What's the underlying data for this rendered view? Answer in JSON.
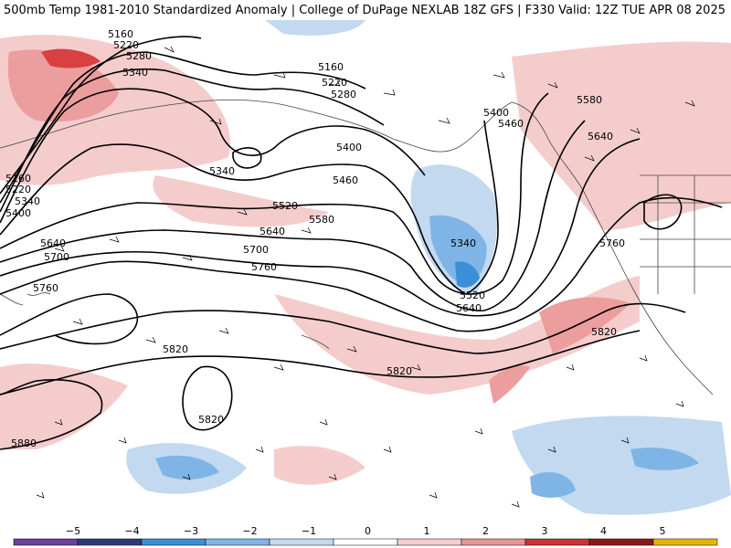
{
  "header": {
    "title": "500mb Temp 1981-2010 Standardized Anomaly | College of DuPage NEXLAB",
    "model_info": "18Z GFS | F330 Valid: 12Z TUE APR 08 2025"
  },
  "contour_labels": {
    "c5160": "5160",
    "c5220": "5220",
    "c5280": "5280",
    "c5340": "5340",
    "c5400": "5400",
    "c5460": "5460",
    "c5520": "5520",
    "c5580": "5580",
    "c5640": "5640",
    "c5700": "5700",
    "c5760": "5760",
    "c5820": "5820",
    "c5880": "5880"
  },
  "colorbar": {
    "ticks": [
      "−5",
      "−4",
      "−3",
      "−2",
      "−1",
      "0",
      "1",
      "2",
      "3",
      "4",
      "5"
    ],
    "colors": [
      "#6a3fa0",
      "#2b3a7a",
      "#3b8fd6",
      "#7fb4e6",
      "#c2d9f0",
      "#ffffff",
      "#f5cccc",
      "#e89494",
      "#cc3333",
      "#8a1a1a",
      "#e6b400"
    ]
  }
}
